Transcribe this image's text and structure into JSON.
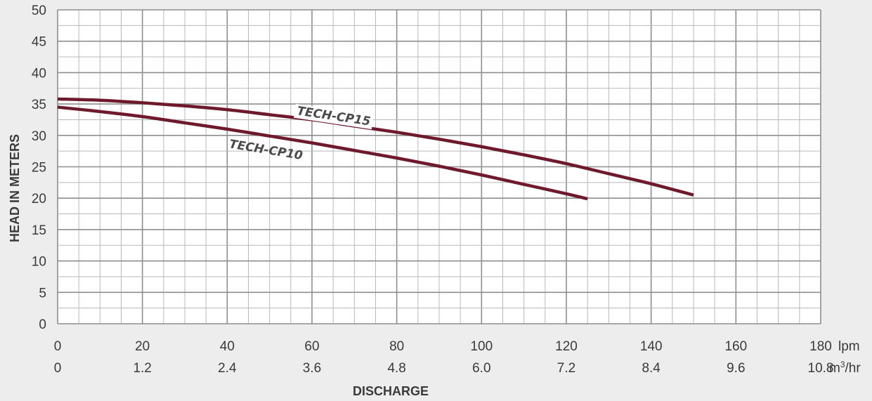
{
  "chart_data": {
    "type": "line",
    "title": "",
    "xlabel": "DISCHARGE",
    "ylabel": "HEAD IN METERS",
    "x_unit": "lpm",
    "x2_unit_base": "m",
    "x2_unit_sup": "3",
    "x2_unit_tail": "/hr",
    "xlim": [
      0,
      180
    ],
    "ylim": [
      0,
      50
    ],
    "x_ticks": [
      "0",
      "20",
      "40",
      "60",
      "80",
      "100",
      "120",
      "140",
      "160",
      "180"
    ],
    "x2_ticks": [
      "0",
      "1.2",
      "2.4",
      "3.6",
      "4.8",
      "6.0",
      "7.2",
      "8.4",
      "9.6",
      "10.8"
    ],
    "y_ticks": [
      "0",
      "5",
      "10",
      "15",
      "20",
      "25",
      "30",
      "35",
      "40",
      "45",
      "50"
    ],
    "grid": true,
    "series": [
      {
        "name": "TECH-CP15",
        "x": [
          0,
          10,
          20,
          30,
          40,
          50,
          60,
          70,
          80,
          90,
          100,
          110,
          120,
          130,
          140,
          150
        ],
        "y": [
          35.8,
          35.6,
          35.2,
          34.7,
          34.1,
          33.3,
          32.5,
          31.5,
          30.5,
          29.4,
          28.2,
          26.9,
          25.5,
          23.9,
          22.3,
          20.5
        ]
      },
      {
        "name": "TECH-CP10",
        "x": [
          0,
          10,
          20,
          30,
          40,
          50,
          60,
          70,
          80,
          90,
          100,
          110,
          120,
          125
        ],
        "y": [
          34.5,
          33.8,
          33.0,
          32.0,
          31.0,
          29.9,
          28.8,
          27.6,
          26.4,
          25.1,
          23.7,
          22.2,
          20.7,
          19.9
        ]
      }
    ],
    "line_color": "#6e1a2c"
  }
}
